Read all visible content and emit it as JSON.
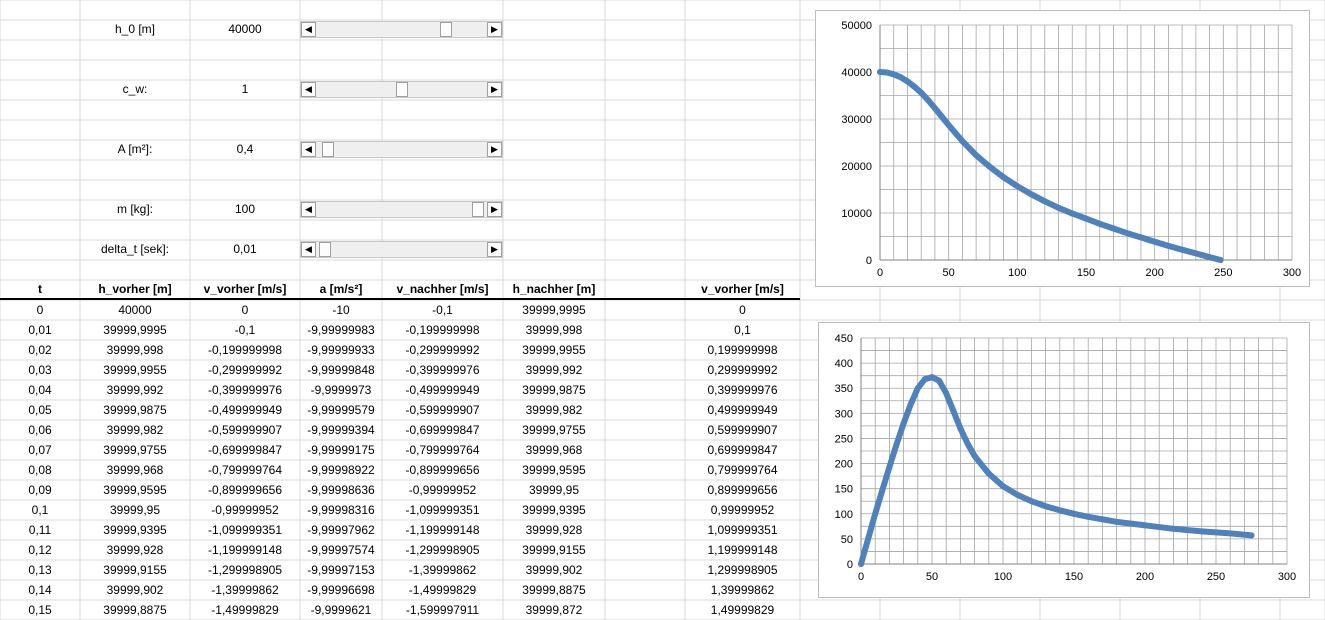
{
  "params": [
    {
      "label": "h_0 [m]",
      "value": "40000",
      "slider_fraction": 0.78
    },
    {
      "label": "c_w:",
      "value": "1",
      "slider_fraction": 0.5
    },
    {
      "label": "A [m²]:",
      "value": "0,4",
      "slider_fraction": 0.04
    },
    {
      "label": "m [kg]:",
      "value": "100",
      "slider_fraction": 0.98
    },
    {
      "label": "delta_t [sek]:",
      "value": "0,01",
      "slider_fraction": 0.02
    }
  ],
  "table": {
    "headers": [
      "t",
      "h_vorher [m]",
      "v_vorher [m/s]",
      "a [m/s²]",
      "v_nachher [m/s]",
      "h_nachher [m]",
      "v_vorher [m/s]"
    ],
    "rows": [
      [
        "0",
        "40000",
        "0",
        "-10",
        "-0,1",
        "39999,9995",
        "0"
      ],
      [
        "0,01",
        "39999,9995",
        "-0,1",
        "-9,99999983",
        "-0,199999998",
        "39999,998",
        "0,1"
      ],
      [
        "0,02",
        "39999,998",
        "-0,199999998",
        "-9,99999933",
        "-0,299999992",
        "39999,9955",
        "0,199999998"
      ],
      [
        "0,03",
        "39999,9955",
        "-0,299999992",
        "-9,99999848",
        "-0,399999976",
        "39999,992",
        "0,299999992"
      ],
      [
        "0,04",
        "39999,992",
        "-0,399999976",
        "-9,9999973",
        "-0,499999949",
        "39999,9875",
        "0,399999976"
      ],
      [
        "0,05",
        "39999,9875",
        "-0,499999949",
        "-9,99999579",
        "-0,599999907",
        "39999,982",
        "0,499999949"
      ],
      [
        "0,06",
        "39999,982",
        "-0,599999907",
        "-9,99999394",
        "-0,699999847",
        "39999,9755",
        "0,599999907"
      ],
      [
        "0,07",
        "39999,9755",
        "-0,699999847",
        "-9,99999175",
        "-0,799999764",
        "39999,968",
        "0,699999847"
      ],
      [
        "0,08",
        "39999,968",
        "-0,799999764",
        "-9,99998922",
        "-0,899999656",
        "39999,9595",
        "0,799999764"
      ],
      [
        "0,09",
        "39999,9595",
        "-0,899999656",
        "-9,99998636",
        "-0,99999952",
        "39999,95",
        "0,899999656"
      ],
      [
        "0,1",
        "39999,95",
        "-0,99999952",
        "-9,99998316",
        "-1,099999351",
        "39999,9395",
        "0,99999952"
      ],
      [
        "0,11",
        "39999,9395",
        "-1,099999351",
        "-9,99997962",
        "-1,199999148",
        "39999,928",
        "1,099999351"
      ],
      [
        "0,12",
        "39999,928",
        "-1,199999148",
        "-9,99997574",
        "-1,299998905",
        "39999,9155",
        "1,199999148"
      ],
      [
        "0,13",
        "39999,9155",
        "-1,299998905",
        "-9,99997153",
        "-1,39999862",
        "39999,902",
        "1,299998905"
      ],
      [
        "0,14",
        "39999,902",
        "-1,39999862",
        "-9,99996698",
        "-1,49999829",
        "39999,8875",
        "1,39999862"
      ],
      [
        "0,15",
        "39999,8875",
        "-1,49999829",
        "-9,9999621",
        "-1,599997911",
        "39999,872",
        "1,49999829"
      ]
    ]
  },
  "chart_data": [
    {
      "type": "scatter",
      "xlim": [
        0,
        300
      ],
      "ylim": [
        0,
        50000
      ],
      "xticks": [
        0,
        50,
        100,
        150,
        200,
        250,
        300
      ],
      "yticks": [
        0,
        10000,
        20000,
        30000,
        40000,
        50000
      ],
      "grid": true,
      "series_color": "#4f81bd",
      "x": [
        0,
        5,
        10,
        15,
        20,
        25,
        30,
        35,
        40,
        45,
        50,
        55,
        60,
        70,
        80,
        90,
        100,
        110,
        120,
        130,
        140,
        150,
        160,
        170,
        180,
        190,
        200,
        210,
        220,
        230,
        240,
        248
      ],
      "y": [
        40000,
        39900,
        39500,
        38900,
        38000,
        36900,
        35600,
        34000,
        32300,
        30500,
        28700,
        27000,
        25300,
        22300,
        19800,
        17600,
        15700,
        14000,
        12500,
        11100,
        9900,
        8800,
        7700,
        6700,
        5700,
        4800,
        3900,
        3000,
        2200,
        1400,
        600,
        0
      ]
    },
    {
      "type": "scatter",
      "xlim": [
        0,
        300
      ],
      "ylim": [
        0,
        450
      ],
      "xticks": [
        0,
        50,
        100,
        150,
        200,
        250,
        300
      ],
      "yticks": [
        0,
        50,
        100,
        150,
        200,
        250,
        300,
        350,
        400,
        450
      ],
      "grid": true,
      "series_color": "#4f81bd",
      "x": [
        0,
        5,
        10,
        15,
        20,
        25,
        30,
        35,
        40,
        45,
        50,
        55,
        60,
        65,
        70,
        75,
        80,
        90,
        100,
        110,
        120,
        130,
        140,
        150,
        160,
        170,
        180,
        200,
        220,
        240,
        260,
        275
      ],
      "y": [
        0,
        50,
        100,
        147,
        193,
        238,
        280,
        318,
        350,
        368,
        372,
        365,
        340,
        305,
        270,
        240,
        215,
        180,
        155,
        138,
        125,
        115,
        107,
        100,
        94,
        89,
        84,
        77,
        70,
        65,
        61,
        57
      ]
    }
  ]
}
